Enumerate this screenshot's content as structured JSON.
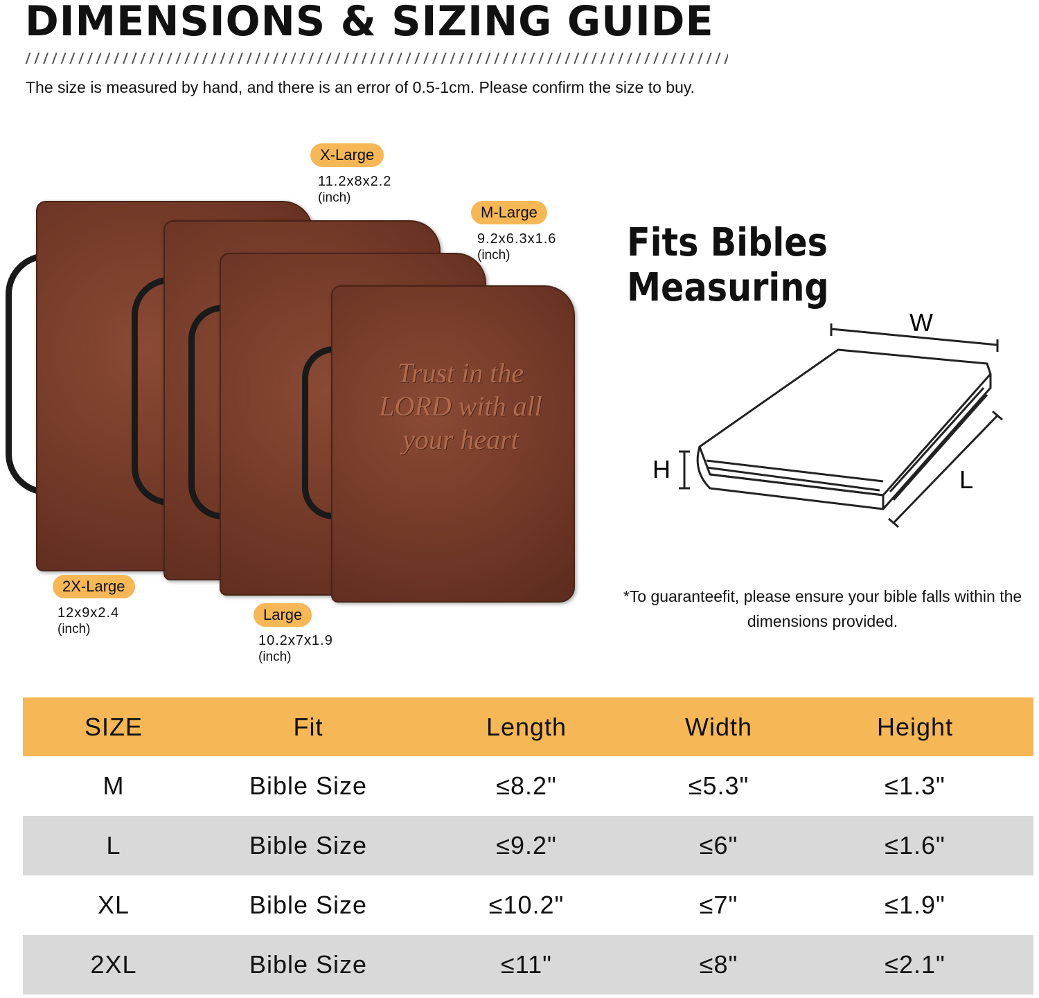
{
  "header": {
    "title": "DIMENSIONS & SIZING GUIDE",
    "subtitle": "The size is measured by hand, and there is an error of 0.5-1cm. Please confirm the size to buy."
  },
  "covers": {
    "cover_text": "Trust in the LORD with all your heart",
    "sizes": [
      {
        "label": "X-Large",
        "dims": "11.2x8x2.2",
        "unit": "(inch)"
      },
      {
        "label": "M-Large",
        "dims": "9.2x6.3x1.6",
        "unit": "(inch)"
      },
      {
        "label": "2X-Large",
        "dims": "12x9x2.4",
        "unit": "(inch)"
      },
      {
        "label": "Large",
        "dims": "10.2x7x1.9",
        "unit": "(inch)"
      }
    ]
  },
  "fit": {
    "heading": "Fits Bibles Measuring",
    "labels": {
      "w": "W",
      "h": "H",
      "l": "L"
    },
    "note": "*To guaranteefit, please ensure your bible falls within the dimensions provided."
  },
  "table": {
    "headers": [
      "SIZE",
      "Fit",
      "Length",
      "Width",
      "Height"
    ],
    "rows": [
      [
        "M",
        "Bible Size",
        "≤8.2\"",
        "≤5.3\"",
        "≤1.3\""
      ],
      [
        "L",
        "Bible Size",
        "≤9.2\"",
        "≤6\"",
        "≤1.6\""
      ],
      [
        "XL",
        "Bible Size",
        "≤10.2\"",
        "≤7\"",
        "≤1.9\""
      ],
      [
        "2XL",
        "Bible Size",
        "≤11\"",
        "≤8\"",
        "≤2.1\""
      ]
    ]
  },
  "colors": {
    "accent": "#f6b756",
    "row_alt": "#d9d9d9",
    "leather": "#6b3424"
  }
}
